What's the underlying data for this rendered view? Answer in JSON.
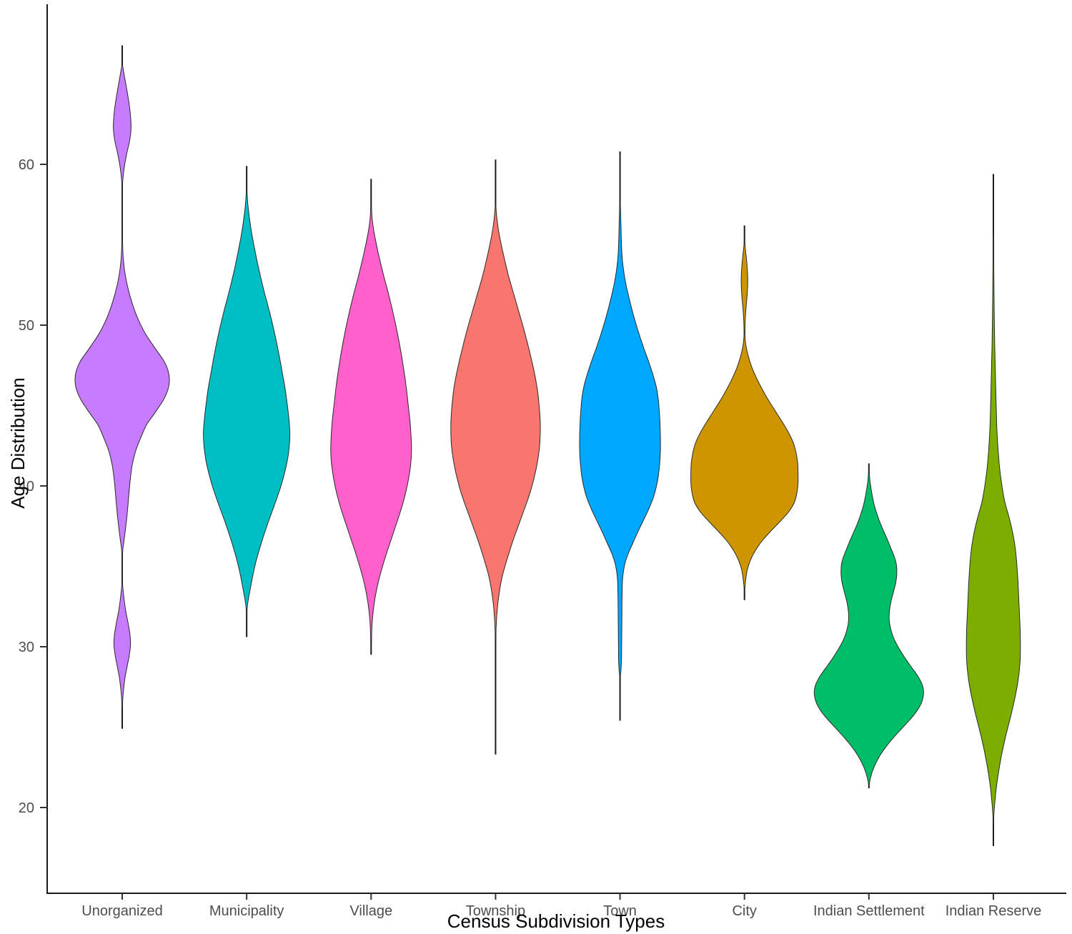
{
  "chart_data": {
    "type": "violin",
    "title": "",
    "xlabel": "Census Subdivision Types",
    "ylabel": "Age Distribution",
    "x_categories": [
      "Unorganized",
      "Municipality",
      "Village",
      "Township",
      "Town",
      "City",
      "Indian Settlement",
      "Indian Reserve"
    ],
    "y_ticks": [
      60,
      50,
      40,
      30,
      20
    ],
    "y_axis_range": [
      15.5,
      69.5
    ],
    "grid": "off",
    "legend": "none",
    "profile_note": "profile = [age, half_width_px] density outline points, top to bottom; range_line = [min_age, max_age] of vertical data line",
    "series": [
      {
        "name": "Unorganized",
        "color": "#C77CFF",
        "range_line": [
          24.9,
          67.4
        ],
        "profile": [
          [
            66.2,
            0.3
          ],
          [
            65.5,
            3
          ],
          [
            64.5,
            7
          ],
          [
            63.5,
            10.5
          ],
          [
            62.8,
            12
          ],
          [
            62.2,
            12.3
          ],
          [
            61.5,
            10.5
          ],
          [
            60.8,
            7
          ],
          [
            60.0,
            3.5
          ],
          [
            59.2,
            1.2
          ],
          [
            58.6,
            0.4
          ],
          [
            57.0,
            0.3
          ],
          [
            55.5,
            0.4
          ],
          [
            54.5,
            1
          ],
          [
            53.5,
            3
          ],
          [
            52.5,
            7
          ],
          [
            51.5,
            13
          ],
          [
            50.5,
            21
          ],
          [
            49.5,
            32
          ],
          [
            48.5,
            47
          ],
          [
            47.8,
            58
          ],
          [
            47.2,
            64
          ],
          [
            46.6,
            66
          ],
          [
            46.0,
            64
          ],
          [
            45.3,
            57
          ],
          [
            44.5,
            45
          ],
          [
            43.8,
            34
          ],
          [
            43.0,
            26
          ],
          [
            42.2,
            19
          ],
          [
            41.3,
            14
          ],
          [
            40.3,
            11
          ],
          [
            39.3,
            9
          ],
          [
            38.3,
            7
          ],
          [
            37.3,
            4.5
          ],
          [
            36.6,
            2.5
          ],
          [
            36.1,
            1
          ],
          [
            35.6,
            0.4
          ],
          [
            34.4,
            0.3
          ],
          [
            33.7,
            0.8
          ],
          [
            33.0,
            2.5
          ],
          [
            32.2,
            5
          ],
          [
            31.4,
            8.5
          ],
          [
            30.7,
            11
          ],
          [
            30.1,
            11.5
          ],
          [
            29.5,
            10
          ],
          [
            28.8,
            7
          ],
          [
            28.1,
            4
          ],
          [
            27.3,
            1.8
          ],
          [
            26.6,
            0.6
          ],
          [
            26.2,
            0.3
          ]
        ]
      },
      {
        "name": "Municipality",
        "color": "#00BFC4",
        "range_line": [
          30.6,
          59.9
        ],
        "profile": [
          [
            58.4,
            0.4
          ],
          [
            57.6,
            1.5
          ],
          [
            56.8,
            3.5
          ],
          [
            56.0,
            6
          ],
          [
            55.0,
            10
          ],
          [
            54.0,
            14.5
          ],
          [
            53.0,
            19.5
          ],
          [
            52.0,
            25
          ],
          [
            51.0,
            31
          ],
          [
            50.0,
            36.5
          ],
          [
            49.0,
            41.5
          ],
          [
            48.0,
            46
          ],
          [
            47.0,
            50
          ],
          [
            46.0,
            54
          ],
          [
            45.0,
            57
          ],
          [
            44.0,
            59.5
          ],
          [
            43.2,
            60.5
          ],
          [
            42.4,
            59.5
          ],
          [
            41.6,
            57
          ],
          [
            40.8,
            53
          ],
          [
            40.0,
            48
          ],
          [
            39.2,
            42
          ],
          [
            38.4,
            35.5
          ],
          [
            37.6,
            29
          ],
          [
            36.8,
            23
          ],
          [
            36.0,
            17.5
          ],
          [
            35.2,
            12.5
          ],
          [
            34.4,
            8.5
          ],
          [
            33.7,
            5.5
          ],
          [
            33.1,
            3
          ],
          [
            32.6,
            1.2
          ],
          [
            32.2,
            0.4
          ]
        ]
      },
      {
        "name": "Village",
        "color": "#FF61CC",
        "range_line": [
          29.5,
          59.1
        ],
        "profile": [
          [
            57.4,
            0.4
          ],
          [
            56.6,
            1.5
          ],
          [
            55.8,
            4
          ],
          [
            55.0,
            7.5
          ],
          [
            54.0,
            12.5
          ],
          [
            53.0,
            18
          ],
          [
            52.0,
            24
          ],
          [
            51.0,
            29.5
          ],
          [
            50.0,
            34.5
          ],
          [
            49.0,
            39
          ],
          [
            48.0,
            43
          ],
          [
            47.0,
            46.5
          ],
          [
            46.0,
            49.5
          ],
          [
            45.0,
            52
          ],
          [
            44.0,
            54.5
          ],
          [
            43.0,
            56
          ],
          [
            42.2,
            56.5
          ],
          [
            41.4,
            55.5
          ],
          [
            40.6,
            53
          ],
          [
            39.8,
            49.5
          ],
          [
            39.0,
            45
          ],
          [
            38.2,
            39.5
          ],
          [
            37.4,
            33.5
          ],
          [
            36.6,
            27.5
          ],
          [
            35.8,
            21.5
          ],
          [
            35.0,
            16
          ],
          [
            34.2,
            11
          ],
          [
            33.4,
            7
          ],
          [
            32.6,
            4
          ],
          [
            31.8,
            2
          ],
          [
            31.0,
            0.9
          ],
          [
            30.2,
            0.4
          ]
        ]
      },
      {
        "name": "Township",
        "color": "#F8766D",
        "range_line": [
          23.3,
          60.3
        ],
        "profile": [
          [
            57.4,
            0.4
          ],
          [
            56.6,
            2
          ],
          [
            55.8,
            4.5
          ],
          [
            55.0,
            8
          ],
          [
            54.0,
            13
          ],
          [
            53.0,
            18.5
          ],
          [
            52.0,
            25
          ],
          [
            51.0,
            31.5
          ],
          [
            50.0,
            38
          ],
          [
            49.0,
            44
          ],
          [
            48.0,
            49.5
          ],
          [
            47.0,
            54.5
          ],
          [
            46.0,
            58.5
          ],
          [
            45.0,
            61
          ],
          [
            44.0,
            62.5
          ],
          [
            43.2,
            62.5
          ],
          [
            42.4,
            61.5
          ],
          [
            41.6,
            59
          ],
          [
            40.8,
            55.5
          ],
          [
            40.0,
            51
          ],
          [
            39.2,
            45.5
          ],
          [
            38.4,
            39
          ],
          [
            37.6,
            32.5
          ],
          [
            36.8,
            26
          ],
          [
            36.0,
            20
          ],
          [
            35.2,
            14.5
          ],
          [
            34.4,
            9.5
          ],
          [
            33.6,
            6
          ],
          [
            32.8,
            3.5
          ],
          [
            32.0,
            1.8
          ],
          [
            31.2,
            0.8
          ],
          [
            30.5,
            0.4
          ]
        ]
      },
      {
        "name": "Town",
        "color": "#00A9FF",
        "range_line": [
          25.4,
          60.8
        ],
        "profile": [
          [
            57.7,
            0.3
          ],
          [
            57.0,
            0.8
          ],
          [
            56.0,
            1.4
          ],
          [
            55.0,
            2
          ],
          [
            54.2,
            3
          ],
          [
            53.4,
            5
          ],
          [
            52.6,
            8
          ],
          [
            51.8,
            12
          ],
          [
            51.0,
            16.5
          ],
          [
            50.2,
            21.5
          ],
          [
            49.4,
            27
          ],
          [
            48.6,
            33
          ],
          [
            47.8,
            39.5
          ],
          [
            47.0,
            45.5
          ],
          [
            46.2,
            50.5
          ],
          [
            45.4,
            53.5
          ],
          [
            44.6,
            55
          ],
          [
            43.8,
            56
          ],
          [
            43.0,
            56.5
          ],
          [
            42.2,
            56.5
          ],
          [
            41.4,
            55.5
          ],
          [
            40.6,
            53.5
          ],
          [
            39.9,
            50.5
          ],
          [
            39.2,
            46
          ],
          [
            38.5,
            39.5
          ],
          [
            37.8,
            32
          ],
          [
            37.1,
            24.5
          ],
          [
            36.4,
            17.5
          ],
          [
            35.8,
            11.5
          ],
          [
            35.2,
            7
          ],
          [
            34.6,
            4.5
          ],
          [
            34.0,
            3.3
          ],
          [
            33.0,
            2.8
          ],
          [
            32.0,
            2.6
          ],
          [
            31.0,
            2.4
          ],
          [
            30.0,
            2.2
          ],
          [
            29.2,
            2.0
          ],
          [
            28.6,
            1.4
          ],
          [
            28.2,
            0.6
          ]
        ]
      },
      {
        "name": "City",
        "color": "#CD9600",
        "range_line": [
          32.9,
          56.2
        ],
        "profile": [
          [
            55.2,
            0.3
          ],
          [
            54.7,
            1.3
          ],
          [
            54.2,
            2.6
          ],
          [
            53.6,
            3.8
          ],
          [
            53.0,
            4.5
          ],
          [
            52.4,
            4.4
          ],
          [
            51.8,
            3.6
          ],
          [
            51.2,
            2.4
          ],
          [
            50.6,
            1.4
          ],
          [
            50.0,
            0.8
          ],
          [
            49.4,
            0.6
          ],
          [
            48.9,
            1.5
          ],
          [
            48.4,
            3.5
          ],
          [
            47.9,
            6.5
          ],
          [
            47.3,
            11
          ],
          [
            46.7,
            17
          ],
          [
            46.0,
            25
          ],
          [
            45.3,
            34
          ],
          [
            44.6,
            44
          ],
          [
            43.9,
            54
          ],
          [
            43.2,
            63
          ],
          [
            42.6,
            69
          ],
          [
            42.0,
            72.5
          ],
          [
            41.4,
            74.5
          ],
          [
            40.8,
            75
          ],
          [
            40.2,
            75
          ],
          [
            39.6,
            73.5
          ],
          [
            39.0,
            70
          ],
          [
            38.4,
            62
          ],
          [
            37.8,
            50
          ],
          [
            37.2,
            37
          ],
          [
            36.6,
            25
          ],
          [
            36.0,
            15.5
          ],
          [
            35.4,
            8.5
          ],
          [
            34.8,
            4
          ],
          [
            34.2,
            1.8
          ],
          [
            33.7,
            0.6
          ]
        ]
      },
      {
        "name": "Indian Settlement",
        "color": "#00BE67",
        "range_line": [
          21.2,
          41.4
        ],
        "profile": [
          [
            40.9,
            0.4
          ],
          [
            40.3,
            1.5
          ],
          [
            39.7,
            3.5
          ],
          [
            39.1,
            6
          ],
          [
            38.5,
            9.5
          ],
          [
            37.9,
            14
          ],
          [
            37.3,
            19.5
          ],
          [
            36.7,
            25.5
          ],
          [
            36.1,
            31
          ],
          [
            35.6,
            35.5
          ],
          [
            35.1,
            38.5
          ],
          [
            34.6,
            39
          ],
          [
            34.1,
            38
          ],
          [
            33.6,
            35.5
          ],
          [
            33.1,
            32.5
          ],
          [
            32.6,
            30
          ],
          [
            32.1,
            28.5
          ],
          [
            31.6,
            28.5
          ],
          [
            31.1,
            30.5
          ],
          [
            30.5,
            35
          ],
          [
            29.9,
            42
          ],
          [
            29.3,
            50.5
          ],
          [
            28.7,
            60
          ],
          [
            28.2,
            68
          ],
          [
            27.7,
            74
          ],
          [
            27.2,
            76.5
          ],
          [
            26.7,
            75
          ],
          [
            26.2,
            70
          ],
          [
            25.7,
            62
          ],
          [
            25.2,
            52
          ],
          [
            24.7,
            41.5
          ],
          [
            24.2,
            31.5
          ],
          [
            23.7,
            22.5
          ],
          [
            23.2,
            15
          ],
          [
            22.7,
            9
          ],
          [
            22.2,
            4.5
          ],
          [
            21.8,
            2
          ],
          [
            21.5,
            0.6
          ]
        ]
      },
      {
        "name": "Indian Reserve",
        "color": "#7CAE00",
        "range_line": [
          17.6,
          59.4
        ],
        "profile": [
          [
            55.6,
            0.25
          ],
          [
            54.0,
            0.5
          ],
          [
            52.0,
            0.9
          ],
          [
            50.0,
            1.4
          ],
          [
            48.5,
            2
          ],
          [
            47.0,
            2.8
          ],
          [
            45.5,
            3.6
          ],
          [
            44.0,
            4.5
          ],
          [
            43.0,
            5.5
          ],
          [
            42.0,
            7
          ],
          [
            41.0,
            9
          ],
          [
            40.0,
            12
          ],
          [
            39.0,
            16
          ],
          [
            38.2,
            21
          ],
          [
            37.4,
            25.5
          ],
          [
            36.6,
            29
          ],
          [
            35.8,
            31.5
          ],
          [
            35.0,
            33
          ],
          [
            34.0,
            34.5
          ],
          [
            33.0,
            35.5
          ],
          [
            32.0,
            36.5
          ],
          [
            31.0,
            37.5
          ],
          [
            30.0,
            37.8
          ],
          [
            29.2,
            37.5
          ],
          [
            28.4,
            36
          ],
          [
            27.6,
            33.5
          ],
          [
            26.8,
            30
          ],
          [
            26.0,
            26
          ],
          [
            25.2,
            21.5
          ],
          [
            24.4,
            17
          ],
          [
            23.6,
            13
          ],
          [
            22.8,
            9.5
          ],
          [
            22.0,
            6.5
          ],
          [
            21.2,
            4
          ],
          [
            20.5,
            2.4
          ],
          [
            19.9,
            1.2
          ],
          [
            19.4,
            0.5
          ],
          [
            19.0,
            0.25
          ]
        ]
      }
    ],
    "style": {
      "outline_color": "#2a2a2a",
      "axis_line_color": "#1a1a1a",
      "tick_label_color": "#4d4d4d",
      "background": "#ffffff"
    }
  }
}
